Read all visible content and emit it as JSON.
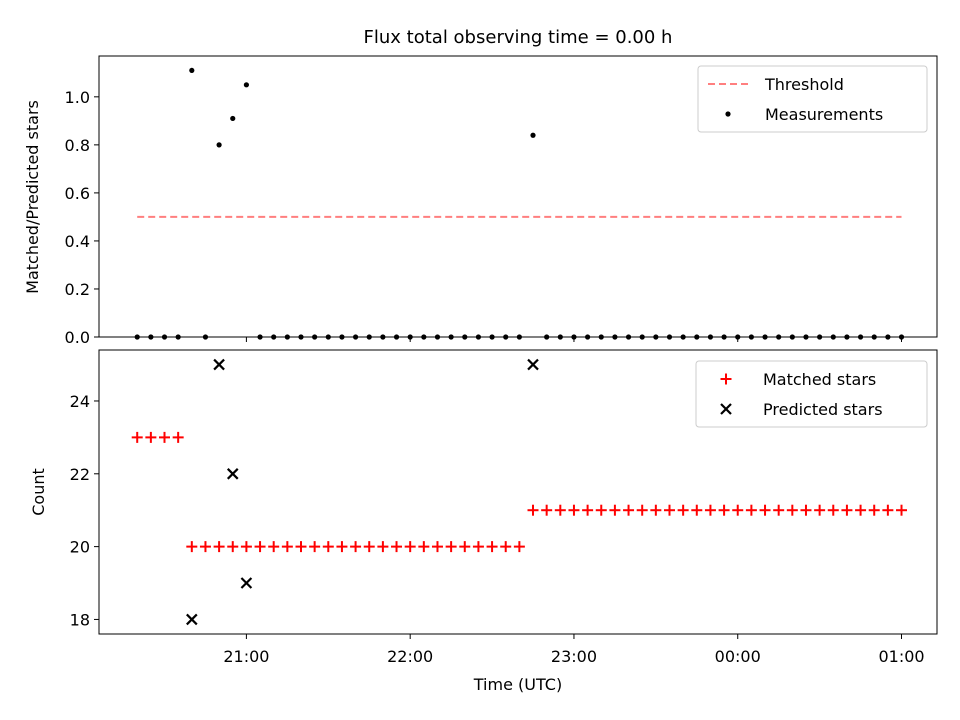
{
  "title": "Flux total observing time = 0.00 h",
  "xlabel": "Time (UTC)",
  "x_ticks": [
    "21:00",
    "22:00",
    "23:00",
    "00:00",
    "01:00"
  ],
  "colors": {
    "threshold": "#ff7f7f",
    "measurement": "#000000",
    "matched": "#ff0000",
    "predicted": "#000000"
  },
  "chart_data": [
    {
      "type": "scatter",
      "ylabel": "Matched/Predicted stars",
      "xlim": [
        "20:06",
        "01:13"
      ],
      "ylim": [
        0,
        1.17
      ],
      "y_ticks": [
        "0.0",
        "0.2",
        "0.4",
        "0.6",
        "0.8",
        "1.0"
      ],
      "grid": false,
      "legend": "top-right",
      "threshold": {
        "name": "Threshold",
        "value": 0.5,
        "x_range": [
          "20:20",
          "01:00"
        ]
      },
      "series": [
        {
          "name": "Measurements",
          "points": [
            [
              "20:20",
              0
            ],
            [
              "20:25",
              0
            ],
            [
              "20:30",
              0
            ],
            [
              "20:35",
              0
            ],
            [
              "20:40",
              1.11
            ],
            [
              "20:45",
              0
            ],
            [
              "20:50",
              0.8
            ],
            [
              "20:55",
              0.91
            ],
            [
              "21:00",
              1.05
            ],
            [
              "21:05",
              0
            ],
            [
              "21:10",
              0
            ],
            [
              "21:15",
              0
            ],
            [
              "21:20",
              0
            ],
            [
              "21:25",
              0
            ],
            [
              "21:30",
              0
            ],
            [
              "21:35",
              0
            ],
            [
              "21:40",
              0
            ],
            [
              "21:45",
              0
            ],
            [
              "21:50",
              0
            ],
            [
              "21:55",
              0
            ],
            [
              "22:00",
              0
            ],
            [
              "22:05",
              0
            ],
            [
              "22:10",
              0
            ],
            [
              "22:15",
              0
            ],
            [
              "22:20",
              0
            ],
            [
              "22:25",
              0
            ],
            [
              "22:30",
              0
            ],
            [
              "22:35",
              0
            ],
            [
              "22:40",
              0
            ],
            [
              "22:45",
              0.84
            ],
            [
              "22:50",
              0
            ],
            [
              "22:55",
              0
            ],
            [
              "23:00",
              0
            ],
            [
              "23:05",
              0
            ],
            [
              "23:10",
              0
            ],
            [
              "23:15",
              0
            ],
            [
              "23:20",
              0
            ],
            [
              "23:25",
              0
            ],
            [
              "23:30",
              0
            ],
            [
              "23:35",
              0
            ],
            [
              "23:40",
              0
            ],
            [
              "23:45",
              0
            ],
            [
              "23:50",
              0
            ],
            [
              "23:55",
              0
            ],
            [
              "00:00",
              0
            ],
            [
              "00:05",
              0
            ],
            [
              "00:10",
              0
            ],
            [
              "00:15",
              0
            ],
            [
              "00:20",
              0
            ],
            [
              "00:25",
              0
            ],
            [
              "00:30",
              0
            ],
            [
              "00:35",
              0
            ],
            [
              "00:40",
              0
            ],
            [
              "00:45",
              0
            ],
            [
              "00:50",
              0
            ],
            [
              "00:55",
              0
            ],
            [
              "01:00",
              0
            ]
          ]
        }
      ]
    },
    {
      "type": "scatter",
      "ylabel": "Count",
      "xlim": [
        "20:06",
        "01:13"
      ],
      "ylim": [
        17.6,
        25.4
      ],
      "y_ticks": [
        "18",
        "20",
        "22",
        "24"
      ],
      "grid": false,
      "legend": "top-right",
      "series": [
        {
          "name": "Matched stars",
          "marker": "plus",
          "points": [
            [
              "20:20",
              23
            ],
            [
              "20:25",
              23
            ],
            [
              "20:30",
              23
            ],
            [
              "20:35",
              23
            ],
            [
              "20:40",
              20
            ],
            [
              "20:45",
              20
            ],
            [
              "20:50",
              20
            ],
            [
              "20:55",
              20
            ],
            [
              "21:00",
              20
            ],
            [
              "21:05",
              20
            ],
            [
              "21:10",
              20
            ],
            [
              "21:15",
              20
            ],
            [
              "21:20",
              20
            ],
            [
              "21:25",
              20
            ],
            [
              "21:30",
              20
            ],
            [
              "21:35",
              20
            ],
            [
              "21:40",
              20
            ],
            [
              "21:45",
              20
            ],
            [
              "21:50",
              20
            ],
            [
              "21:55",
              20
            ],
            [
              "22:00",
              20
            ],
            [
              "22:05",
              20
            ],
            [
              "22:10",
              20
            ],
            [
              "22:15",
              20
            ],
            [
              "22:20",
              20
            ],
            [
              "22:25",
              20
            ],
            [
              "22:30",
              20
            ],
            [
              "22:35",
              20
            ],
            [
              "22:40",
              20
            ],
            [
              "22:45",
              21
            ],
            [
              "22:50",
              21
            ],
            [
              "22:55",
              21
            ],
            [
              "23:00",
              21
            ],
            [
              "23:05",
              21
            ],
            [
              "23:10",
              21
            ],
            [
              "23:15",
              21
            ],
            [
              "23:20",
              21
            ],
            [
              "23:25",
              21
            ],
            [
              "23:30",
              21
            ],
            [
              "23:35",
              21
            ],
            [
              "23:40",
              21
            ],
            [
              "23:45",
              21
            ],
            [
              "23:50",
              21
            ],
            [
              "23:55",
              21
            ],
            [
              "00:00",
              21
            ],
            [
              "00:05",
              21
            ],
            [
              "00:10",
              21
            ],
            [
              "00:15",
              21
            ],
            [
              "00:20",
              21
            ],
            [
              "00:25",
              21
            ],
            [
              "00:30",
              21
            ],
            [
              "00:35",
              21
            ],
            [
              "00:40",
              21
            ],
            [
              "00:45",
              21
            ],
            [
              "00:50",
              21
            ],
            [
              "00:55",
              21
            ],
            [
              "01:00",
              21
            ]
          ]
        },
        {
          "name": "Predicted stars",
          "marker": "x",
          "points": [
            [
              "20:40",
              18
            ],
            [
              "20:50",
              25
            ],
            [
              "20:55",
              22
            ],
            [
              "21:00",
              19
            ],
            [
              "22:45",
              25
            ]
          ]
        }
      ]
    }
  ]
}
